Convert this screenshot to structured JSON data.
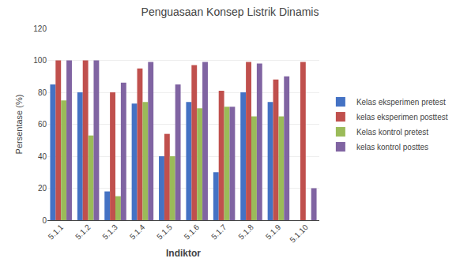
{
  "chart_data": {
    "type": "bar",
    "title": "Penguasaan Konsep Listrik Dinamis",
    "xlabel": "Indiktor",
    "ylabel": "Persentase (%)",
    "categories": [
      "5.1.1",
      "5.1.2",
      "5.1.3",
      "5.1.4",
      "5.1.5",
      "5.1.6",
      "5.1.7",
      "5.1.8",
      "5.1.9",
      "5.1.10"
    ],
    "series": [
      {
        "name": "Kelas eksperimen pretest",
        "color": "#4472C4",
        "values": [
          85,
          80,
          18,
          73,
          40,
          74,
          30,
          80,
          74,
          0
        ]
      },
      {
        "name": "kelas eksperimen posttest",
        "color": "#C0504D",
        "values": [
          100,
          100,
          80,
          95,
          54,
          97,
          81,
          99,
          88,
          99
        ]
      },
      {
        "name": "Kelas kontrol pretest",
        "color": "#9BBB59",
        "values": [
          75,
          53,
          15,
          74,
          40,
          70,
          71,
          65,
          65,
          0
        ]
      },
      {
        "name": "kelas kontrol posttes",
        "color": "#8064A2",
        "values": [
          100,
          100,
          86,
          99,
          85,
          99,
          71,
          98,
          90,
          20
        ]
      }
    ],
    "ylim": [
      0,
      120
    ],
    "yticks": [
      0,
      20,
      40,
      60,
      80,
      100,
      120
    ],
    "grid": true,
    "legend": "right"
  }
}
